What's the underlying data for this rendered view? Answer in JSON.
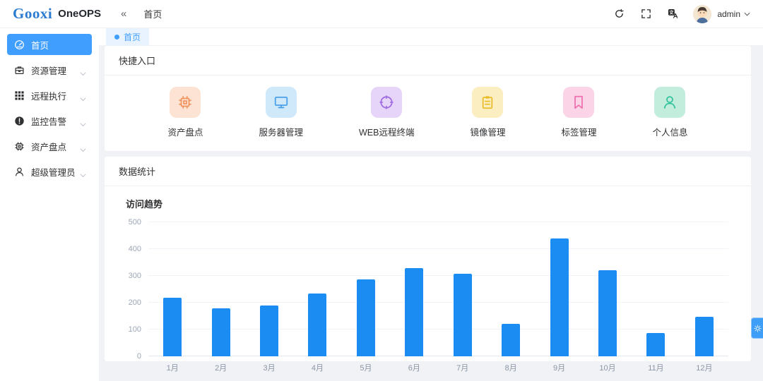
{
  "header": {
    "logo": "Gooxi",
    "product": "OneOPS",
    "collapse_glyph": "«",
    "breadcrumb": "首页",
    "username": "admin",
    "action_icons": [
      "refresh-icon",
      "fullscreen-icon",
      "translate-icon"
    ]
  },
  "sidebar": {
    "items": [
      {
        "label": "首页",
        "icon": "dashboard-icon",
        "active": true,
        "expandable": false
      },
      {
        "label": "资源管理",
        "icon": "briefcase-icon",
        "active": false,
        "expandable": true
      },
      {
        "label": "远程执行",
        "icon": "grid-icon",
        "active": false,
        "expandable": true
      },
      {
        "label": "监控告警",
        "icon": "alert-icon",
        "active": false,
        "expandable": true
      },
      {
        "label": "资产盘点",
        "icon": "cpu-icon",
        "active": false,
        "expandable": true
      },
      {
        "label": "超级管理员",
        "icon": "person-icon",
        "active": false,
        "expandable": true
      }
    ]
  },
  "tabs": [
    {
      "label": "首页",
      "active": true
    }
  ],
  "quick_entry": {
    "title": "快捷入口",
    "items": [
      {
        "label": "资产盘点",
        "icon": "cpu-icon",
        "bg": "#fde3d3",
        "fg": "#f0945f"
      },
      {
        "label": "服务器管理",
        "icon": "monitor-icon",
        "bg": "#cfe9fb",
        "fg": "#4ba0ea"
      },
      {
        "label": "WEB远程终端",
        "icon": "target-icon",
        "bg": "#e6d4f9",
        "fg": "#a06ee0"
      },
      {
        "label": "镜像管理",
        "icon": "clipboard-icon",
        "bg": "#fbeec0",
        "fg": "#e9bd2c"
      },
      {
        "label": "标签管理",
        "icon": "bookmark-icon",
        "bg": "#fbd4e8",
        "fg": "#ee71b0"
      },
      {
        "label": "个人信息",
        "icon": "person-icon",
        "bg": "#c2eddd",
        "fg": "#33c39c"
      }
    ]
  },
  "stats": {
    "title": "数据统计"
  },
  "chart_data": {
    "type": "bar",
    "title": "访问趋势",
    "categories": [
      "1月",
      "2月",
      "3月",
      "4月",
      "5月",
      "6月",
      "7月",
      "8月",
      "9月",
      "10月",
      "11月",
      "12月"
    ],
    "values": [
      219,
      180,
      190,
      233,
      288,
      330,
      308,
      122,
      440,
      320,
      88,
      147
    ],
    "xlabel": "",
    "ylabel": "",
    "ylim": [
      0,
      500
    ],
    "ytick_step": 100,
    "grid": true,
    "legend": null,
    "bar_color": "#1b8df2"
  },
  "colors": {
    "accent": "#409eff",
    "tab_bg": "#e8f3ff",
    "page_bg": "#f0f2f5"
  }
}
